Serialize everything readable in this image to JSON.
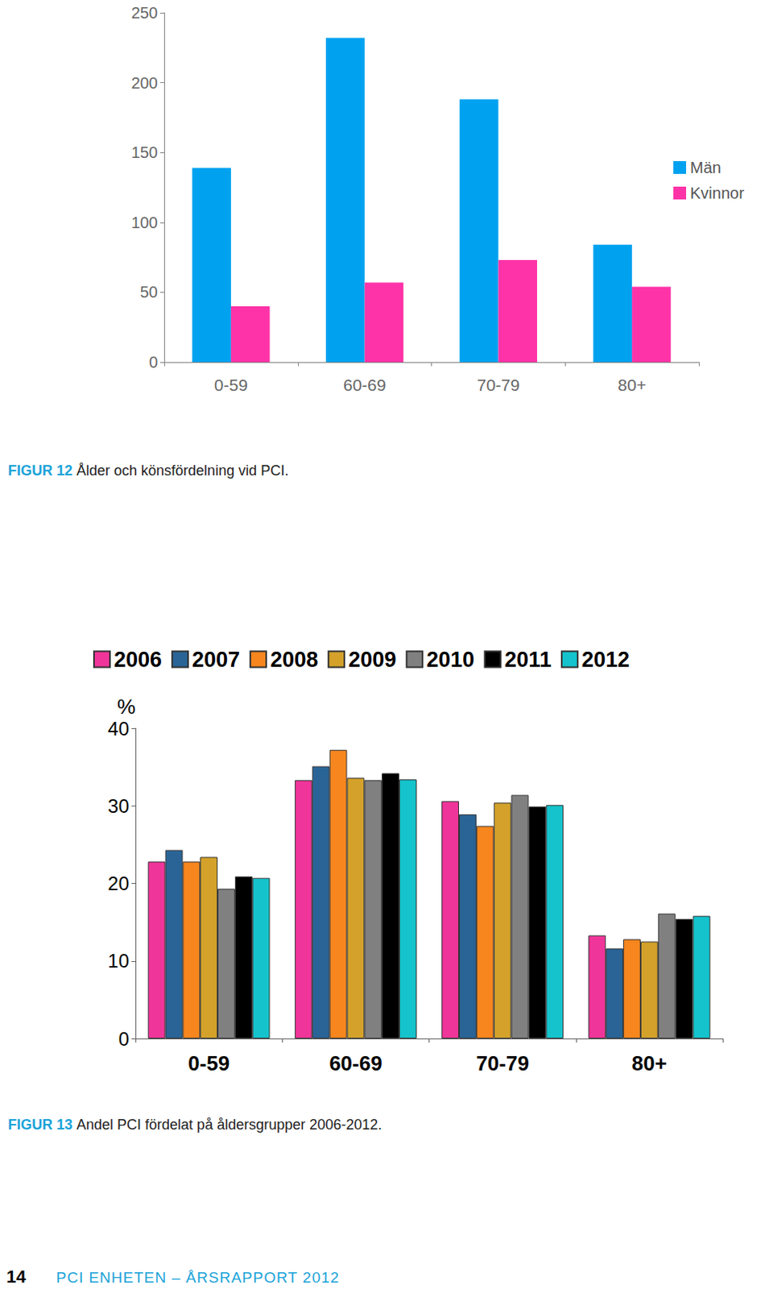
{
  "chart_data": [
    {
      "type": "bar",
      "categories": [
        "0-59",
        "60-69",
        "70-79",
        "80+"
      ],
      "series": [
        {
          "name": "Män",
          "color": "#00a2f0",
          "values": [
            139,
            232,
            188,
            84
          ]
        },
        {
          "name": "Kvinnor",
          "color": "#ff33a8",
          "values": [
            40,
            57,
            73,
            54
          ]
        }
      ],
      "ylim": [
        0,
        250
      ],
      "yticks": [
        0,
        50,
        100,
        150,
        200,
        250
      ],
      "grid": false,
      "legend": "right",
      "caption": {
        "label": "FIGUR 12",
        "text": "Ålder och könsfördelning vid PCI."
      }
    },
    {
      "type": "bar",
      "y_label": "%",
      "categories": [
        "0-59",
        "60-69",
        "70-79",
        "80+"
      ],
      "series": [
        {
          "name": "2006",
          "color": "#f0359a",
          "values": [
            22.8,
            33.3,
            30.6,
            13.3
          ]
        },
        {
          "name": "2007",
          "color": "#2a6496",
          "values": [
            24.3,
            35.1,
            28.9,
            11.6
          ]
        },
        {
          "name": "2008",
          "color": "#f7861e",
          "values": [
            22.8,
            37.2,
            27.4,
            12.8
          ]
        },
        {
          "name": "2009",
          "color": "#d4a22a",
          "values": [
            23.4,
            33.6,
            30.4,
            12.5
          ]
        },
        {
          "name": "2010",
          "color": "#808080",
          "values": [
            19.3,
            33.3,
            31.4,
            16.1
          ]
        },
        {
          "name": "2011",
          "color": "#000000",
          "values": [
            20.9,
            34.2,
            29.9,
            15.4
          ]
        },
        {
          "name": "2012",
          "color": "#15c3cc",
          "values": [
            20.7,
            33.4,
            30.1,
            15.8
          ]
        }
      ],
      "ylim": [
        0,
        40
      ],
      "yticks": [
        0,
        10,
        20,
        30,
        40
      ],
      "grid": false,
      "legend": "top",
      "caption": {
        "label": "FIGUR 13",
        "text": "Andel PCI fördelat på åldersgrupper 2006-2012."
      }
    }
  ],
  "footer": {
    "page_number": 14,
    "text": "PCI ENHETEN – ÅRSRAPPORT 2012"
  }
}
